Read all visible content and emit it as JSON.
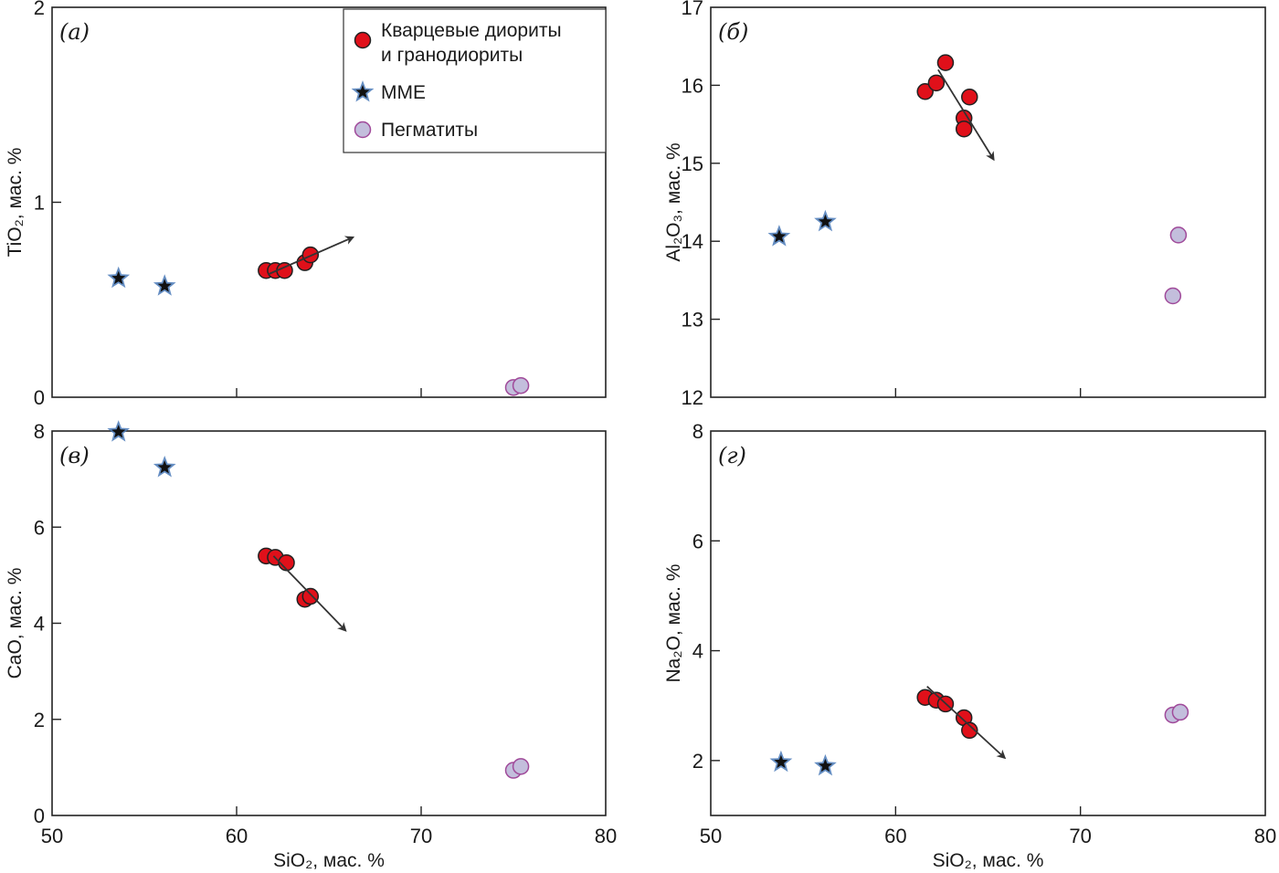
{
  "legend": {
    "items": [
      {
        "label_line1": "Кварцевые диориты",
        "label_line2": "и гранодиориты",
        "marker": "circle",
        "fill": "#e0101a",
        "stroke": "#222222"
      },
      {
        "label_line1": "MME",
        "marker": "star",
        "fill": "#111111",
        "stroke": "#4a7ab8"
      },
      {
        "label_line1": "Пегматиты",
        "marker": "circle",
        "fill": "#c3bedc",
        "stroke": "#a04a9a"
      }
    ]
  },
  "chart_data": [
    {
      "type": "scatter",
      "panel_label": "(а)",
      "xlabel": "SiO₂, мас. %",
      "ylabel": "TiO₂, мас. %",
      "xlim": [
        50,
        80
      ],
      "ylim": [
        0,
        2
      ],
      "xticks": [
        50,
        60,
        70,
        80
      ],
      "yticks": [
        0,
        1,
        2
      ],
      "show_x_tick_labels": false,
      "series": [
        {
          "name": "Кварцевые диориты и гранодиориты",
          "points": [
            [
              61.6,
              0.65
            ],
            [
              62.1,
              0.65
            ],
            [
              62.6,
              0.65
            ],
            [
              63.7,
              0.69
            ],
            [
              64.0,
              0.73
            ]
          ]
        },
        {
          "name": "MME",
          "points": [
            [
              53.6,
              0.61
            ],
            [
              56.1,
              0.57
            ]
          ]
        },
        {
          "name": "Пегматиты",
          "points": [
            [
              75.0,
              0.05
            ],
            [
              75.4,
              0.06
            ]
          ]
        }
      ],
      "trend_arrow": {
        "from": [
          61.7,
          0.63
        ],
        "to": [
          66.3,
          0.82
        ]
      }
    },
    {
      "type": "scatter",
      "panel_label": "(б)",
      "xlabel": "SiO₂, мас. %",
      "ylabel": "Al₂O₃, мас. %",
      "xlim": [
        50,
        80
      ],
      "ylim": [
        12,
        17
      ],
      "xticks": [
        50,
        60,
        70,
        80
      ],
      "yticks": [
        12,
        13,
        14,
        15,
        16,
        17
      ],
      "show_x_tick_labels": false,
      "series": [
        {
          "name": "Кварцевые диориты и гранодиориты",
          "points": [
            [
              61.6,
              15.92
            ],
            [
              62.2,
              16.03
            ],
            [
              62.7,
              16.29
            ],
            [
              64.0,
              15.85
            ],
            [
              63.7,
              15.58
            ],
            [
              63.7,
              15.44
            ]
          ]
        },
        {
          "name": "MME",
          "points": [
            [
              53.7,
              14.06
            ],
            [
              56.2,
              14.25
            ]
          ]
        },
        {
          "name": "Пегматиты",
          "points": [
            [
              75.3,
              14.08
            ],
            [
              75.0,
              13.3
            ]
          ]
        }
      ],
      "trend_arrow": {
        "from": [
          62.3,
          16.2
        ],
        "to": [
          65.3,
          15.05
        ]
      }
    },
    {
      "type": "scatter",
      "panel_label": "(в)",
      "xlabel": "SiO₂, мас. %",
      "ylabel": "CaO, мас. %",
      "xlim": [
        50,
        80
      ],
      "ylim": [
        0,
        8
      ],
      "xticks": [
        50,
        60,
        70,
        80
      ],
      "yticks": [
        0,
        2,
        4,
        6,
        8
      ],
      "show_x_tick_labels": true,
      "series": [
        {
          "name": "Кварцевые диориты и гранодиориты",
          "points": [
            [
              61.6,
              5.4
            ],
            [
              62.1,
              5.37
            ],
            [
              62.7,
              5.26
            ],
            [
              63.7,
              4.5
            ],
            [
              64.0,
              4.56
            ]
          ]
        },
        {
          "name": "MME",
          "points": [
            [
              53.6,
              7.98
            ],
            [
              56.1,
              7.24
            ]
          ]
        },
        {
          "name": "Пегматиты",
          "points": [
            [
              75.0,
              0.94
            ],
            [
              75.4,
              1.02
            ]
          ]
        }
      ],
      "trend_arrow": {
        "from": [
          62.0,
          5.4
        ],
        "to": [
          65.9,
          3.85
        ]
      }
    },
    {
      "type": "scatter",
      "panel_label": "(г)",
      "xlabel": "SiO₂, мас. %",
      "ylabel": "Na₂O, мас. %",
      "xlim": [
        50,
        80
      ],
      "ylim": [
        1,
        8
      ],
      "xticks": [
        50,
        60,
        70,
        80
      ],
      "yticks": [
        2,
        4,
        6,
        8
      ],
      "show_x_tick_labels": true,
      "series": [
        {
          "name": "Кварцевые диориты и гранодиориты",
          "points": [
            [
              61.6,
              3.15
            ],
            [
              62.2,
              3.1
            ],
            [
              62.7,
              3.03
            ],
            [
              63.7,
              2.78
            ],
            [
              64.0,
              2.55
            ]
          ]
        },
        {
          "name": "MME",
          "points": [
            [
              53.8,
              1.97
            ],
            [
              56.2,
              1.9
            ]
          ]
        },
        {
          "name": "Пегматиты",
          "points": [
            [
              75.0,
              2.83
            ],
            [
              75.4,
              2.88
            ]
          ]
        }
      ],
      "trend_arrow": {
        "from": [
          61.7,
          3.35
        ],
        "to": [
          65.9,
          2.05
        ]
      }
    }
  ]
}
